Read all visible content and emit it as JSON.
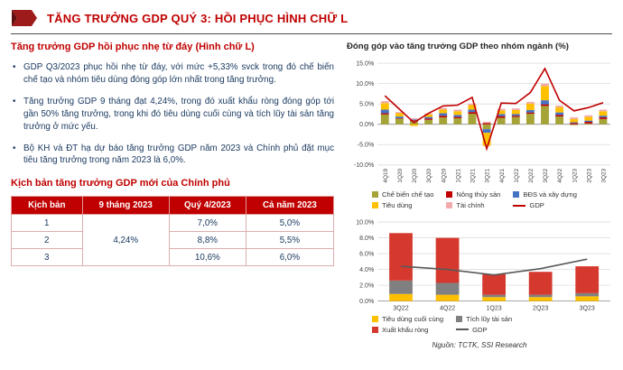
{
  "header": {
    "title": "TĂNG TRƯỞNG GDP QUÝ 3: HỒI PHỤC HÌNH CHỮ L"
  },
  "left": {
    "heading": "Tăng trưởng GDP hồi phục nhẹ từ đáy (Hình chữ L)",
    "bullets": [
      "GDP Q3/2023 phục hồi nhẹ từ đáy, với mức +5,33% svck trong đó chế biến chế tạo và nhóm tiêu dùng đóng góp lớn nhất trong tăng trưởng.",
      "Tăng trưởng GDP 9 tháng đạt 4,24%, trong đó xuất khẩu ròng đóng góp tới gần 50% tăng trưởng, trong khi đó tiêu dùng cuối cùng và tích lũy tài sản tăng trưởng ở mức yếu.",
      "Bộ KH và ĐT hạ dự báo tăng trưởng GDP năm 2023 và Chính phủ đặt mục tiêu tăng trưởng trong năm 2023 là 6,0%."
    ],
    "scenario_heading": "Kịch bản tăng trưởng GDP mới của Chính phủ",
    "table": {
      "headers": [
        "Kịch bản",
        "9 tháng 2023",
        "Quý 4/2023",
        "Cả năm 2023"
      ],
      "nine_month_value": "4,24%",
      "rows": [
        {
          "scenario": "1",
          "q4": "7,0%",
          "year": "5,0%"
        },
        {
          "scenario": "2",
          "q4": "8,8%",
          "year": "5,5%"
        },
        {
          "scenario": "3",
          "q4": "10,6%",
          "year": "6,0%"
        }
      ]
    }
  },
  "right": {
    "source": "Nguồn: TCTK, SSI Research"
  },
  "colors": {
    "accent_red": "#C00000",
    "navy": "#17375E"
  },
  "chart_data": [
    {
      "type": "bar",
      "stacked": true,
      "title": "Đóng góp vào tăng trưởng GDP theo nhóm ngành (%)",
      "categories": [
        "4Q19",
        "1Q20",
        "2Q20",
        "3Q20",
        "4Q20",
        "1Q21",
        "2Q21",
        "3Q21",
        "4Q21",
        "1Q22",
        "2Q22",
        "3Q22",
        "4Q22",
        "1Q23",
        "2Q23",
        "3Q23"
      ],
      "series": [
        {
          "name": "Chế biến chế tạo",
          "color": "#A6A437",
          "values": [
            2.4,
            1.4,
            0.8,
            1.1,
            1.7,
            1.5,
            2.6,
            -1.2,
            1.6,
            1.8,
            2.6,
            4.5,
            1.9,
            -0.2,
            0.2,
            1.3
          ]
        },
        {
          "name": "Nông thủy sản",
          "color": "#C00000",
          "values": [
            0.3,
            0.1,
            0.2,
            0.3,
            0.4,
            0.3,
            0.4,
            0.3,
            0.4,
            0.3,
            0.3,
            0.4,
            0.4,
            0.3,
            0.4,
            0.4
          ]
        },
        {
          "name": "BĐS và xây dựng",
          "color": "#4472C4",
          "values": [
            0.9,
            0.4,
            0.2,
            0.4,
            0.6,
            0.5,
            0.6,
            -0.9,
            0.5,
            0.4,
            0.6,
            1.0,
            0.6,
            0.2,
            0.3,
            0.4
          ]
        },
        {
          "name": "Tiêu dùng",
          "color": "#FFC000",
          "values": [
            1.6,
            0.8,
            -0.4,
            0.6,
            0.9,
            0.9,
            1.1,
            -3.2,
            0.9,
            1.0,
            1.6,
            3.5,
            1.3,
            0.8,
            0.9,
            1.1
          ]
        },
        {
          "name": "Tài chính",
          "color": "#F2ABAB",
          "values": [
            0.5,
            0.3,
            0.3,
            0.3,
            0.4,
            0.4,
            0.4,
            0.3,
            0.4,
            0.4,
            0.4,
            0.6,
            0.4,
            0.4,
            0.4,
            0.4
          ]
        }
      ],
      "line": {
        "name": "GDP",
        "color": "#C00000",
        "values": [
          7.0,
          3.7,
          0.4,
          2.7,
          4.5,
          4.7,
          6.6,
          -6.0,
          5.2,
          5.1,
          7.8,
          13.7,
          5.9,
          3.3,
          4.1,
          5.3
        ]
      },
      "ylim": [
        -10,
        15
      ],
      "ystep": 5,
      "grid": true,
      "legend_position": "bottom"
    },
    {
      "type": "bar",
      "stacked": true,
      "title": "",
      "categories": [
        "3Q22",
        "4Q22",
        "1Q23",
        "2Q23",
        "3Q23"
      ],
      "series": [
        {
          "name": "Tiêu dùng cuối cùng",
          "color": "#FFC000",
          "values": [
            0.9,
            0.8,
            0.5,
            0.5,
            0.6
          ]
        },
        {
          "name": "Tích lũy tài sản",
          "color": "#808080",
          "values": [
            1.7,
            1.5,
            0.3,
            0.3,
            0.4
          ]
        },
        {
          "name": "Xuất khẩu ròng",
          "color": "#D5392E",
          "values": [
            6.0,
            5.7,
            2.6,
            2.9,
            3.4
          ]
        }
      ],
      "line": {
        "name": "GDP",
        "color": "#595959",
        "values": [
          4.4,
          4.0,
          3.3,
          4.1,
          5.3
        ]
      },
      "ylim": [
        0,
        10
      ],
      "ystep": 2,
      "grid": true,
      "legend_position": "bottom"
    }
  ]
}
